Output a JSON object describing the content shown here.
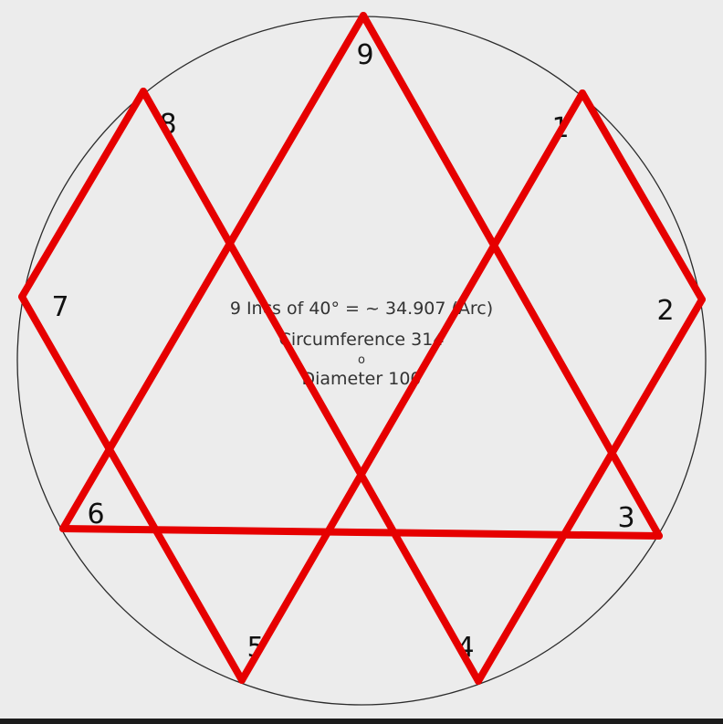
{
  "diagram": {
    "point_labels": [
      "9",
      "1",
      "2",
      "3",
      "4",
      "5",
      "6",
      "7",
      "8"
    ],
    "center_text": {
      "line1": "9 Incs of 40° = ~ 34.907 (Arc)",
      "line2": "Circumference 314",
      "separator": "o",
      "line3": "Diameter 100"
    },
    "colors": {
      "background": "#ececec",
      "circle": "#2b2b2b",
      "lines": "#e60000",
      "text": "#111111"
    }
  }
}
